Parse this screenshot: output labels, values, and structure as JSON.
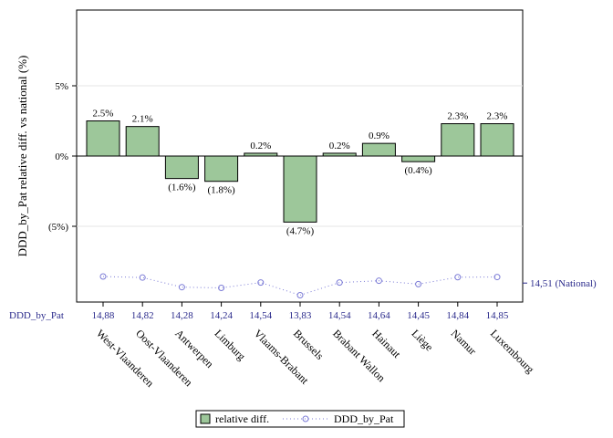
{
  "chart_data": {
    "type": "bar",
    "title": "",
    "ylabel": "DDD_by_Pat relative diff. vs national (%)",
    "xlabel": "",
    "ylim": [
      -10,
      10
    ],
    "yticks": [
      {
        "value": 5,
        "label": "5%"
      },
      {
        "value": 0,
        "label": "0%"
      },
      {
        "value": -5,
        "label": "(5%)"
      }
    ],
    "grid": true,
    "categories": [
      "West-Vlaanderen",
      "Oost-Vlaanderen",
      "Antwerpen",
      "Limburg",
      "Vlaams-Brabant",
      "Brussels",
      "Brabant Wallon",
      "Hainaut",
      "Liège",
      "Namur",
      "Luxembourg"
    ],
    "series": [
      {
        "name": "relative diff.",
        "type": "bar",
        "values": [
          2.5,
          2.1,
          -1.6,
          -1.8,
          0.2,
          -4.7,
          0.2,
          0.9,
          -0.4,
          2.3,
          2.3
        ],
        "labels": [
          "2.5%",
          "2.1%",
          "(1.6%)",
          "(1.8%)",
          "0.2%",
          "(4.7%)",
          "0.2%",
          "0.9%",
          "(0.4%)",
          "2.3%",
          "2.3%"
        ],
        "color": "#9dc79a"
      },
      {
        "name": "DDD_by_Pat",
        "type": "line",
        "values": [
          14.88,
          14.82,
          14.28,
          14.24,
          14.54,
          13.83,
          14.54,
          14.64,
          14.45,
          14.84,
          14.85
        ],
        "labels": [
          "14,88",
          "14,82",
          "14,28",
          "14,24",
          "14,54",
          "13,83",
          "14,54",
          "14,64",
          "14,45",
          "14,84",
          "14,85"
        ],
        "color": "#7b7bd6"
      }
    ],
    "ddd_row_label": "DDD_by_Pat",
    "national_label": "14,51 (National)",
    "national_value": 14.51,
    "legend": {
      "placement": "bottom",
      "items": [
        "relative diff.",
        "DDD_by_Pat"
      ]
    }
  }
}
